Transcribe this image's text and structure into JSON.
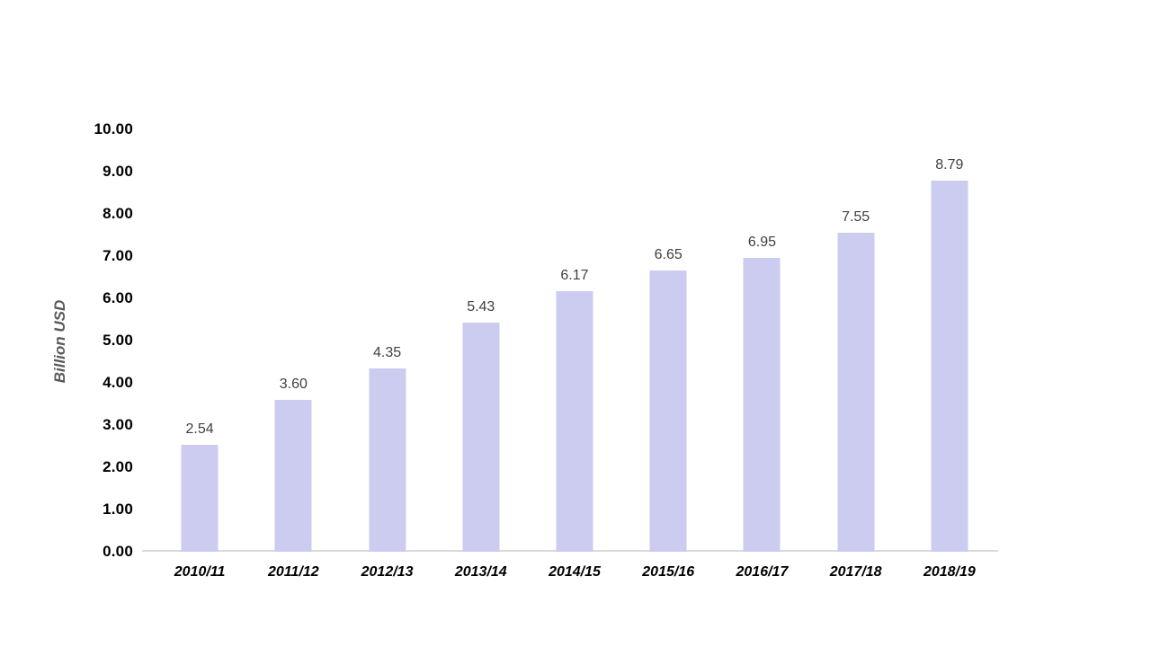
{
  "chart_data": {
    "type": "bar",
    "categories": [
      "2010/11",
      "2011/12",
      "2012/13",
      "2013/14",
      "2014/15",
      "2015/16",
      "2016/17",
      "2017/18",
      "2018/19"
    ],
    "values": [
      2.54,
      3.6,
      4.35,
      5.43,
      6.17,
      6.65,
      6.95,
      7.55,
      8.79
    ],
    "data_labels": [
      "2.54",
      "3.60",
      "4.35",
      "5.43",
      "6.17",
      "6.65",
      "6.95",
      "7.55",
      "8.79"
    ],
    "title": "",
    "xlabel": "",
    "ylabel": "Billion USD",
    "ylim": [
      0,
      10
    ],
    "ytick_step": 1,
    "ytick_labels": [
      "0.00",
      "1.00",
      "2.00",
      "3.00",
      "4.00",
      "5.00",
      "6.00",
      "7.00",
      "8.00",
      "9.00",
      "10.00"
    ],
    "grid": false,
    "legend": null,
    "colors": {
      "bar_fill": "#CCCBF0",
      "axis_line": "#D9D9D9",
      "value_label": "#404040",
      "tick_label": "#000000",
      "axis_title": "#595959",
      "background": "#FFFFFF"
    }
  }
}
